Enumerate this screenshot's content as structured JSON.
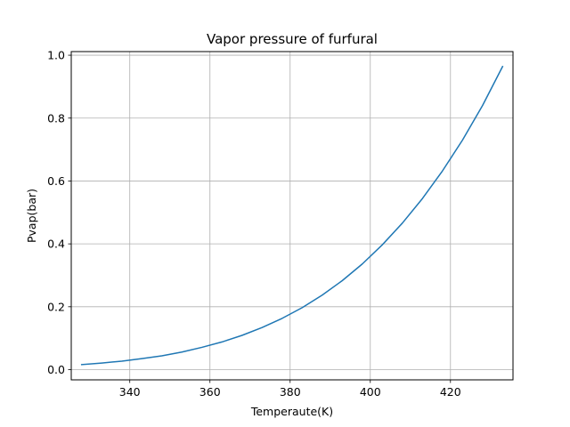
{
  "chart_data": {
    "type": "line",
    "title": "Vapor pressure of furfural",
    "xlabel": "Temperaute(K)",
    "ylabel": "Pvap(bar)",
    "xlim": [
      325.4,
      435.6
    ],
    "ylim": [
      -0.0325,
      1.0115
    ],
    "xticks": [
      340,
      360,
      380,
      400,
      420
    ],
    "yticks": [
      0.0,
      0.2,
      0.4,
      0.6,
      0.8,
      1.0
    ],
    "xtick_labels": [
      "340",
      "360",
      "380",
      "400",
      "420"
    ],
    "ytick_labels": [
      "0.0",
      "0.2",
      "0.4",
      "0.6",
      "0.8",
      "1.0"
    ],
    "grid": true,
    "series": [
      {
        "color": "#1f77b4",
        "x": [
          328,
          333,
          338,
          343,
          348,
          353,
          358,
          363,
          368,
          373,
          378,
          383,
          388,
          393,
          398,
          403,
          408,
          413,
          418,
          423,
          428,
          433
        ],
        "y": [
          0.016,
          0.021,
          0.027,
          0.035,
          0.044,
          0.056,
          0.071,
          0.088,
          0.109,
          0.134,
          0.163,
          0.197,
          0.237,
          0.283,
          0.336,
          0.397,
          0.466,
          0.544,
          0.632,
          0.73,
          0.84,
          0.964
        ]
      }
    ]
  }
}
